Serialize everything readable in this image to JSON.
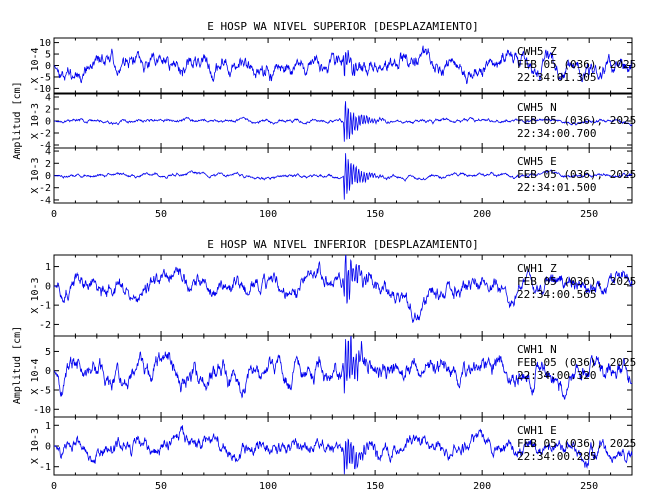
{
  "chart_data": [
    {
      "type": "line",
      "title": "E HOSP WA NIVEL SUPERIOR [DESPLAZAMIENTO]",
      "ylabel": "Amplitud [cm]",
      "xlim": [
        0,
        270
      ],
      "xticks": [
        "0",
        "50",
        "100",
        "150",
        "200",
        "250"
      ],
      "line_color": "#0000ee",
      "series": [
        {
          "name": "CWH5 Z",
          "scale_label": "X 10-4",
          "ylim": [
            -12,
            12
          ],
          "yticks": [
            "10",
            "5",
            "0",
            "-5",
            "-10"
          ],
          "annotation": [
            "CWH5  Z",
            "FEB 05 (036), 2025",
            "22:34:01.305"
          ],
          "noise_amp": 4.5,
          "event": {
            "x": 136,
            "peak": 5
          },
          "end_spike": {
            "x": 259,
            "value": 11
          },
          "seed": 11
        },
        {
          "name": "CWH5 N",
          "scale_label": "X 10-3",
          "ylim": [
            -4.5,
            4.5
          ],
          "yticks": [
            "4",
            "2",
            "0",
            "-2",
            "-4"
          ],
          "annotation": [
            "CWH5  N",
            "FEB 05 (036), 2025",
            "22:34:00.700"
          ],
          "noise_amp": 0.35,
          "event": {
            "x": 136,
            "peak": 4.2
          },
          "seed": 23
        },
        {
          "name": "CWH5 E",
          "scale_label": "X 10-3",
          "ylim": [
            -4.5,
            4.5
          ],
          "yticks": [
            "4",
            "2",
            "0",
            "-2",
            "-4"
          ],
          "annotation": [
            "CWH5  E",
            "FEB 05 (036), 2025",
            "22:34:01.500"
          ],
          "noise_amp": 0.35,
          "event": {
            "x": 136,
            "peak": 4.2
          },
          "seed": 37
        }
      ]
    },
    {
      "type": "line",
      "title": "E HOSP WA NIVEL INFERIOR [DESPLAZAMIENTO]",
      "ylabel": "Amplitud [cm]",
      "xlim": [
        0,
        270
      ],
      "xticks": [
        "0",
        "50",
        "100",
        "150",
        "200",
        "250"
      ],
      "line_color": "#0000ee",
      "series": [
        {
          "name": "CWH1 Z",
          "scale_label": "X 10-3",
          "ylim": [
            -2.6,
            1.6
          ],
          "yticks": [
            "1",
            "0",
            "-1",
            "-2"
          ],
          "annotation": [
            "CWH1  Z",
            "FEB 05 (036), 2025",
            "22:34:00.565"
          ],
          "noise_amp": 0.55,
          "event": {
            "x": 136,
            "peak": 1.4
          },
          "dip": {
            "x": 170,
            "depth": -1.6
          },
          "seed": 51
        },
        {
          "name": "CWH1 N",
          "scale_label": "X 10-4",
          "ylim": [
            -12,
            9
          ],
          "yticks": [
            "5",
            "0",
            "-5",
            "-10"
          ],
          "annotation": [
            "CWH1  N",
            "FEB 05 (036), 2025",
            "22:34:00.320"
          ],
          "noise_amp": 3.2,
          "event": {
            "x": 136,
            "peak": 9
          },
          "seed": 67
        },
        {
          "name": "CWH1 E",
          "scale_label": "X 10-3",
          "ylim": [
            -1.4,
            1.4
          ],
          "yticks": [
            "1",
            "0",
            "-1"
          ],
          "annotation": [
            "CWH1  E",
            "FEB 05 (036), 2025",
            "22:34:00.285"
          ],
          "noise_amp": 0.45,
          "event": {
            "x": 136,
            "peak": 1.1
          },
          "seed": 83
        }
      ]
    }
  ]
}
